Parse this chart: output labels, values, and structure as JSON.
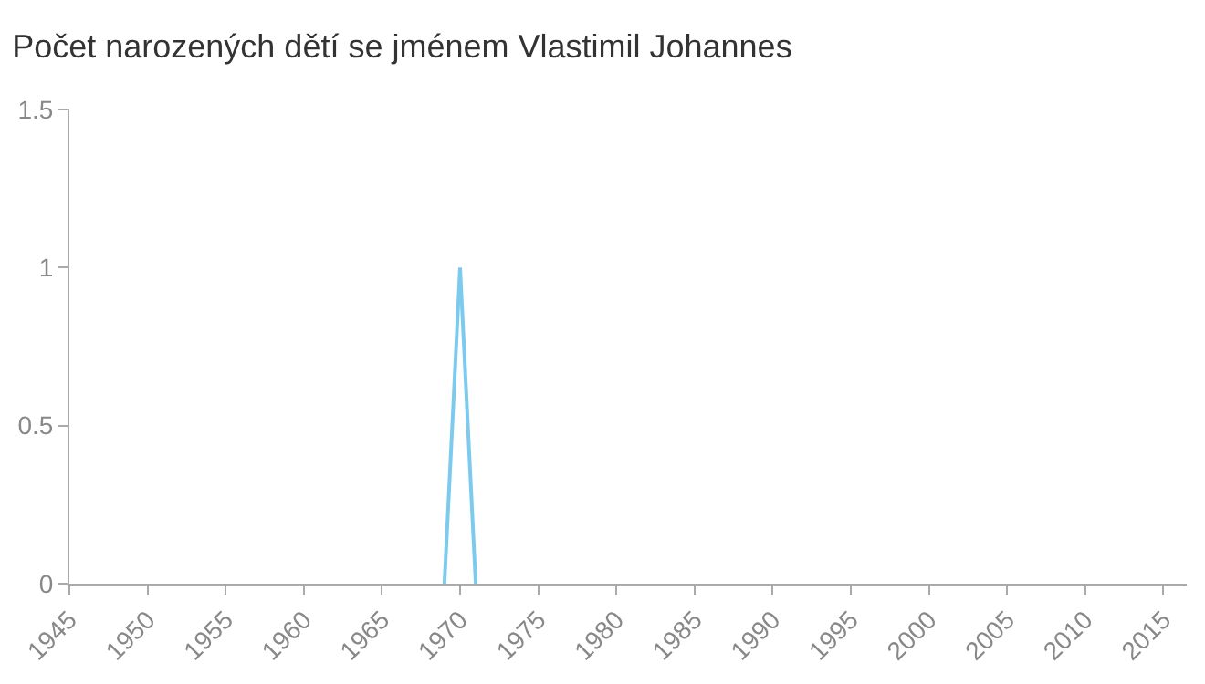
{
  "chart_data": {
    "type": "line",
    "title": "Počet narozených dětí se jménem Vlastimil Johannes",
    "x": [
      1969,
      1970,
      1971
    ],
    "series": [
      {
        "color": "#7ccbee",
        "values": [
          0,
          1,
          0
        ]
      }
    ],
    "xlim": [
      1945,
      2016.5
    ],
    "xticks": [
      1945,
      1950,
      1955,
      1960,
      1965,
      1970,
      1975,
      1980,
      1985,
      1990,
      1995,
      2000,
      2005,
      2010,
      2015
    ],
    "ylim": [
      0,
      1.5
    ],
    "yticks": [
      0,
      {
        "value": 0.5,
        "label": "0.5"
      },
      1,
      {
        "value": 1.5,
        "label": "1.5"
      }
    ],
    "marker": "none",
    "line_style": "solid"
  }
}
